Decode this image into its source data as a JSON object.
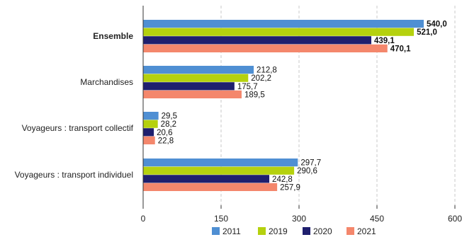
{
  "chart_data": {
    "type": "bar",
    "orientation": "horizontal",
    "categories": [
      "Ensemble",
      "Marchandises",
      "Voyageurs : transport collectif",
      "Voyageurs : transport individuel"
    ],
    "bold_categories": [
      "Ensemble"
    ],
    "series": [
      {
        "name": "2011",
        "color": "#4f8fd3",
        "values": [
          540.0,
          212.8,
          29.5,
          297.7
        ],
        "labels": [
          "540,0",
          "212,8",
          "29,5",
          "297,7"
        ]
      },
      {
        "name": "2019",
        "color": "#b5d10e",
        "values": [
          521.0,
          202.2,
          28.2,
          290.6
        ],
        "labels": [
          "521,0",
          "202,2",
          "28,2",
          "290,6"
        ]
      },
      {
        "name": "2020",
        "color": "#1f1f6e",
        "values": [
          439.1,
          175.7,
          20.6,
          242.8
        ],
        "labels": [
          "439,1",
          "175,7",
          "20,6",
          "242,8"
        ]
      },
      {
        "name": "2021",
        "color": "#f4876c",
        "values": [
          470.1,
          189.5,
          22.8,
          257.9
        ],
        "labels": [
          "470,1",
          "189,5",
          "22,8",
          "257,9"
        ]
      }
    ],
    "x_ticks": [
      0,
      150,
      300,
      450,
      600
    ],
    "x_tick_labels": [
      "0",
      "150",
      "300",
      "450",
      "600"
    ],
    "xlim": [
      0,
      600
    ],
    "grid": "vertical-dashed",
    "legend_position": "bottom"
  }
}
